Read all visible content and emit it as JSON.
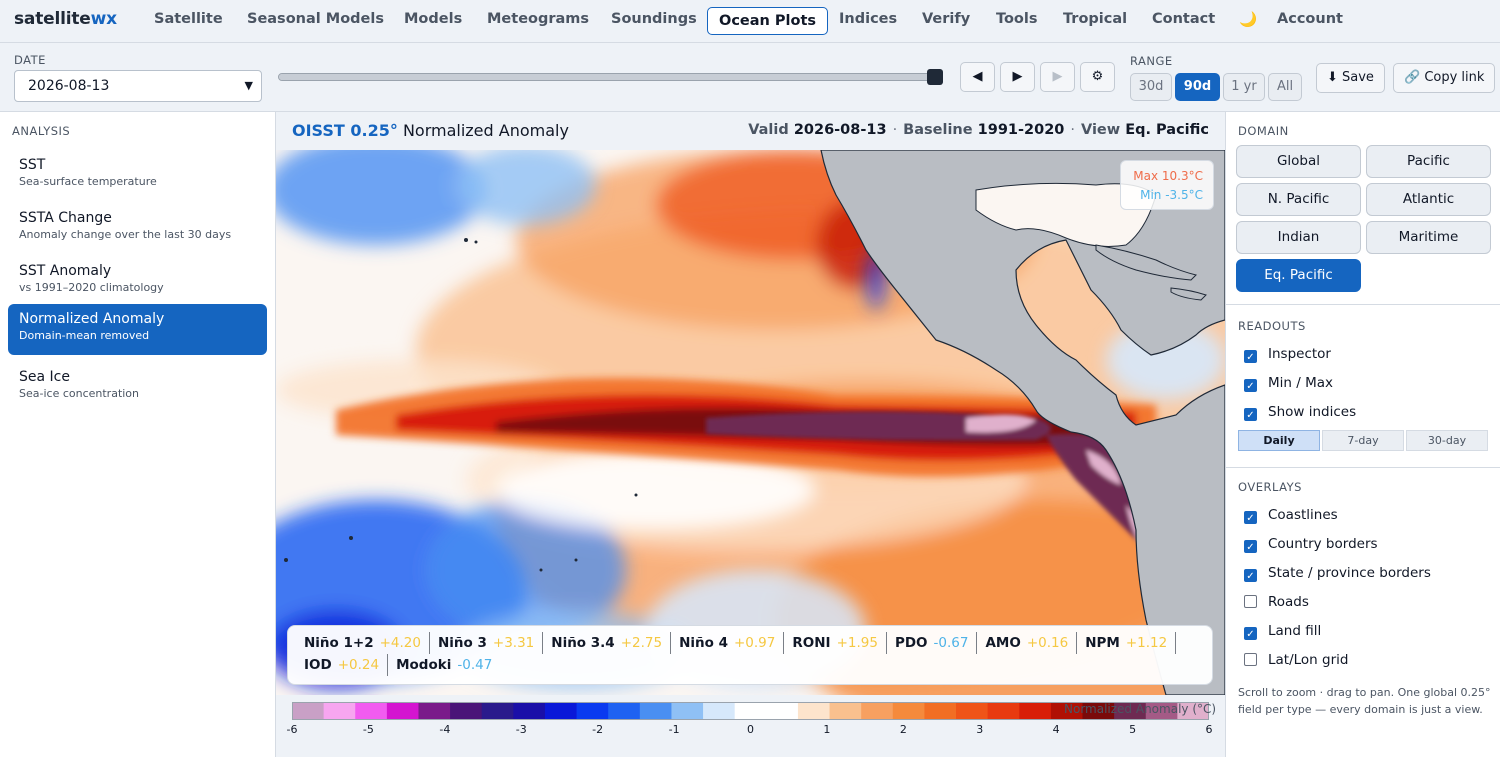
{
  "brand": {
    "main": "satellite",
    "accent": "wx"
  },
  "nav": {
    "items": [
      "Satellite",
      "Seasonal Models",
      "Models",
      "Meteograms",
      "Soundings",
      "Ocean Plots",
      "Indices",
      "Verify",
      "Tools",
      "Tropical",
      "Contact",
      "🌙",
      "Account"
    ],
    "active": "Ocean Plots"
  },
  "toolbar": {
    "date_label": "DATE",
    "date_value": "2026-08-13",
    "range_label": "RANGE",
    "range_options": [
      "30d",
      "90d",
      "1 yr",
      "All"
    ],
    "range_selected": "90d",
    "prev_icon": "◀",
    "play_icon": "▶",
    "next_icon": "▶",
    "settings_icon": "⚙",
    "save_label": "⬇ Save",
    "copy_label": "🔗 Copy link",
    "slider_position": 1.0
  },
  "analysis": {
    "heading": "ANALYSIS",
    "items": [
      {
        "title": "SST",
        "subtitle": "Sea-surface temperature"
      },
      {
        "title": "SSTA Change",
        "subtitle": "Anomaly change over the last 30 days"
      },
      {
        "title": "SST Anomaly",
        "subtitle": "vs 1991–2020 climatology"
      },
      {
        "title": "Normalized Anomaly",
        "subtitle": "Domain-mean removed"
      },
      {
        "title": "Sea Ice",
        "subtitle": "Sea-ice concentration"
      }
    ],
    "active": "Normalized Anomaly"
  },
  "map": {
    "source": "OISST 0.25°",
    "product": "Normalized Anomaly",
    "valid_label": "Valid",
    "valid_value": "2026-08-13",
    "baseline_label": "Baseline",
    "baseline_value": "1991-2020",
    "view_label": "View",
    "view_value": "Eq. Pacific",
    "dot": "·",
    "max_text": "Max 10.3°C",
    "min_text": "Min -3.5°C"
  },
  "indices": [
    {
      "name": "Niño 1+2",
      "value": "+4.20",
      "sign": "pos"
    },
    {
      "name": "Niño 3",
      "value": "+3.31",
      "sign": "pos"
    },
    {
      "name": "Niño 3.4",
      "value": "+2.75",
      "sign": "pos"
    },
    {
      "name": "Niño 4",
      "value": "+0.97",
      "sign": "pos"
    },
    {
      "name": "RONI",
      "value": "+1.95",
      "sign": "pos"
    },
    {
      "name": "PDO",
      "value": "-0.67",
      "sign": "neg"
    },
    {
      "name": "AMO",
      "value": "+0.16",
      "sign": "pos"
    },
    {
      "name": "NPM",
      "value": "+1.12",
      "sign": "pos"
    },
    {
      "name": "IOD",
      "value": "+0.24",
      "sign": "pos"
    },
    {
      "name": "Modoki",
      "value": "-0.47",
      "sign": "neg"
    }
  ],
  "colorbar": {
    "title": "Normalized Anomaly (°C)",
    "ticks": [
      "-6",
      "-5",
      "-4",
      "-3",
      "-2",
      "-1",
      "0",
      "1",
      "2",
      "3",
      "4",
      "5",
      "6"
    ],
    "tick_values": [
      -6,
      -5,
      -4,
      -3,
      -2,
      -1,
      0,
      1,
      2,
      3,
      4,
      5,
      6
    ],
    "colors": [
      "#c9a0c6",
      "#f7a6f0",
      "#f25cf0",
      "#d414d0",
      "#7a1a8a",
      "#4a1478",
      "#2a1a8c",
      "#1a0fa8",
      "#0a18d8",
      "#0a3af0",
      "#1e62f2",
      "#4a8ff2",
      "#8fc0f5",
      "#d6e8fb",
      "#ffffff",
      "#ffffff",
      "#fde4cc",
      "#f9c08e",
      "#f7a060",
      "#f58a3c",
      "#f26e24",
      "#ef5418",
      "#e83a10",
      "#d81e08",
      "#b01004",
      "#7a0a0a",
      "#6e2a52",
      "#a45a86",
      "#e0b0cc"
    ]
  },
  "domain": {
    "heading": "DOMAIN",
    "options": [
      "Global",
      "Pacific",
      "N. Pacific",
      "Atlantic",
      "Indian",
      "Maritime",
      "Eq. Pacific"
    ],
    "active": "Eq. Pacific"
  },
  "readouts": {
    "heading": "READOUTS",
    "items": [
      {
        "label": "Inspector",
        "checked": true
      },
      {
        "label": "Min / Max",
        "checked": true
      },
      {
        "label": "Show indices",
        "checked": true
      }
    ],
    "periods": [
      "Daily",
      "7-day",
      "30-day"
    ],
    "period_active": "Daily"
  },
  "overlays": {
    "heading": "OVERLAYS",
    "items": [
      {
        "label": "Coastlines",
        "checked": true
      },
      {
        "label": "Country borders",
        "checked": true
      },
      {
        "label": "State / province borders",
        "checked": true
      },
      {
        "label": "Roads",
        "checked": false
      },
      {
        "label": "Land fill",
        "checked": true
      },
      {
        "label": "Lat/Lon grid",
        "checked": false
      }
    ]
  },
  "hint": "Scroll to zoom · drag to pan. One global 0.25° field per type — every domain is just a view.",
  "check_glyph": "✓"
}
